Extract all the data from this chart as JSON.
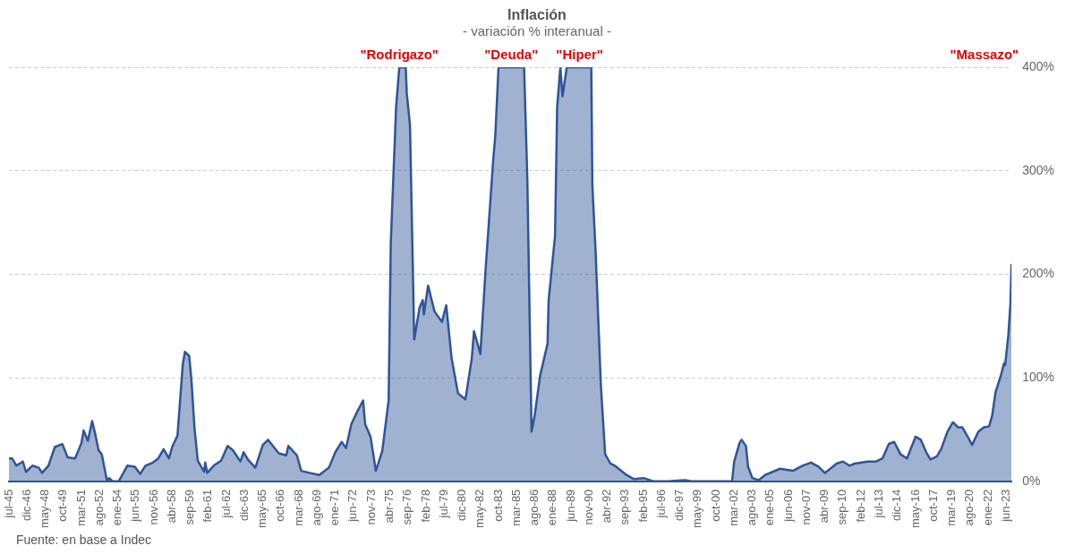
{
  "chart_data": {
    "type": "area",
    "title": "Inflación",
    "subtitle": "- variación % interanual -",
    "x": [
      "1945-07",
      "1945-10",
      "1946-02",
      "1946-08",
      "1946-11",
      "1947-05",
      "1947-11",
      "1948-02",
      "1948-08",
      "1949-02",
      "1949-09",
      "1950-02",
      "1950-09",
      "1951-03",
      "1951-05",
      "1951-09",
      "1952-01",
      "1952-04",
      "1952-07",
      "1952-10",
      "1953-03",
      "1953-05",
      "1953-08",
      "1954-02",
      "1954-10",
      "1955-05",
      "1955-10",
      "1956-03",
      "1956-10",
      "1957-03",
      "1957-08",
      "1958-01",
      "1958-04",
      "1958-09",
      "1959-02",
      "1959-04",
      "1959-08",
      "1959-10",
      "1960-01",
      "1960-04",
      "1960-10",
      "1960-11",
      "1961-01",
      "1961-07",
      "1962-02",
      "1962-08",
      "1963-01",
      "1963-08",
      "1963-11",
      "1964-03",
      "1964-10",
      "1965-05",
      "1965-10",
      "1966-08",
      "1967-03",
      "1967-05",
      "1968-01",
      "1968-05",
      "1969-01",
      "1969-10",
      "1970-07",
      "1971-01",
      "1971-07",
      "1971-11",
      "1972-04",
      "1972-09",
      "1973-03",
      "1973-05",
      "1973-10",
      "1974-03",
      "1974-09",
      "1975-03",
      "1975-05",
      "1975-10",
      "1976-01",
      "1976-07",
      "1976-08",
      "1976-11",
      "1977-03",
      "1977-08",
      "1977-11",
      "1977-12",
      "1978-04",
      "1978-10",
      "1979-05",
      "1979-09",
      "1980-02",
      "1980-08",
      "1981-03",
      "1981-09",
      "1981-11",
      "1982-05",
      "1982-10",
      "1983-05",
      "1983-07",
      "1983-10",
      "1985-10",
      "1986-01",
      "1986-05",
      "1986-08",
      "1987-01",
      "1987-08",
      "1987-09",
      "1988-03",
      "1988-05",
      "1988-08",
      "1988-10",
      "1989-02",
      "1991-01",
      "1991-02",
      "1991-05",
      "1991-10",
      "1992-02",
      "1992-07",
      "1992-11",
      "1993-05",
      "1993-10",
      "1994-05",
      "1995-02",
      "1995-11",
      "1997-01",
      "1998-05",
      "1998-11",
      "2002-01",
      "2002-03",
      "2002-08",
      "2002-10",
      "2003-02",
      "2003-04",
      "2003-08",
      "2004-02",
      "2004-08",
      "2005-03",
      "2005-10",
      "2006-10",
      "2007-07",
      "2008-03",
      "2008-10",
      "2009-04",
      "2010-03",
      "2010-09",
      "2011-03",
      "2011-08",
      "2012-08",
      "2013-04",
      "2013-10",
      "2014-04",
      "2014-09",
      "2015-03",
      "2015-09",
      "2016-05",
      "2016-10",
      "2017-03",
      "2017-07",
      "2018-01",
      "2018-05",
      "2018-11",
      "2019-04",
      "2019-09",
      "2020-01",
      "2020-07",
      "2020-10",
      "2021-04",
      "2021-09",
      "2022-02",
      "2022-05",
      "2022-08",
      "2023-01",
      "2023-04",
      "2023-05",
      "2023-08",
      "2023-10",
      "2023-11"
    ],
    "series": [
      {
        "color": "#2e5597",
        "values": [
          22,
          22,
          15,
          19,
          9,
          15,
          13,
          8,
          15,
          33,
          36,
          23,
          22,
          37,
          49,
          39,
          58,
          45,
          30,
          26,
          0,
          3,
          0,
          0,
          15,
          14,
          7,
          15,
          18,
          22,
          31,
          22,
          33,
          44,
          113,
          125,
          121,
          99,
          51,
          20,
          9,
          18,
          8,
          15,
          20,
          34,
          30,
          19,
          28,
          21,
          13,
          35,
          40,
          27,
          25,
          34,
          25,
          10,
          8,
          6,
          13,
          28,
          38,
          32,
          55,
          66,
          78,
          55,
          43,
          10,
          29,
          78,
          230,
          362,
          400,
          400,
          375,
          344,
          137,
          168,
          175,
          161,
          189,
          164,
          154,
          170,
          119,
          85,
          79,
          119,
          145,
          123,
          206,
          310,
          334,
          400,
          400,
          293,
          48,
          64,
          102,
          133,
          175,
          237,
          362,
          400,
          372,
          400,
          400,
          286,
          223,
          92,
          26,
          17,
          15,
          10,
          6,
          2,
          3,
          0,
          0,
          1,
          0,
          0,
          19,
          37,
          40,
          34,
          14,
          3,
          1,
          6,
          9,
          12,
          10,
          15,
          18,
          14,
          8,
          17,
          19,
          15,
          17,
          19,
          19,
          22,
          36,
          38,
          26,
          22,
          43,
          40,
          28,
          21,
          24,
          31,
          48,
          57,
          52,
          52,
          41,
          35,
          48,
          52,
          53,
          64,
          86,
          102,
          114,
          112,
          141,
          172,
          210
        ]
      }
    ],
    "xlim": [
      "1945-07",
      "2023-11"
    ],
    "xticks": [
      {
        "value": "1945-07",
        "label": "jul-45"
      },
      {
        "value": "1946-12",
        "label": "dic-46"
      },
      {
        "value": "1948-05",
        "label": "may-48"
      },
      {
        "value": "1949-10",
        "label": "oct-49"
      },
      {
        "value": "1951-03",
        "label": "mar-51"
      },
      {
        "value": "1952-08",
        "label": "ago-52"
      },
      {
        "value": "1954-01",
        "label": "ene-54"
      },
      {
        "value": "1955-06",
        "label": "jun-55"
      },
      {
        "value": "1956-11",
        "label": "nov-56"
      },
      {
        "value": "1958-04",
        "label": "abr-58"
      },
      {
        "value": "1959-09",
        "label": "sep-59"
      },
      {
        "value": "1961-02",
        "label": "feb-61"
      },
      {
        "value": "1962-07",
        "label": "jul-62"
      },
      {
        "value": "1963-12",
        "label": "dic-63"
      },
      {
        "value": "1965-05",
        "label": "may-65"
      },
      {
        "value": "1966-10",
        "label": "oct-66"
      },
      {
        "value": "1968-03",
        "label": "mar-68"
      },
      {
        "value": "1969-08",
        "label": "ago-69"
      },
      {
        "value": "1971-01",
        "label": "ene-71"
      },
      {
        "value": "1972-06",
        "label": "jun-72"
      },
      {
        "value": "1973-11",
        "label": "nov-73"
      },
      {
        "value": "1975-04",
        "label": "abr-75"
      },
      {
        "value": "1976-09",
        "label": "sep-76"
      },
      {
        "value": "1978-02",
        "label": "feb-78"
      },
      {
        "value": "1979-07",
        "label": "jul-79"
      },
      {
        "value": "1980-12",
        "label": "dic-80"
      },
      {
        "value": "1982-05",
        "label": "may-82"
      },
      {
        "value": "1983-10",
        "label": "oct-83"
      },
      {
        "value": "1985-03",
        "label": "mar-85"
      },
      {
        "value": "1986-08",
        "label": "ago-86"
      },
      {
        "value": "1988-01",
        "label": "ene-88"
      },
      {
        "value": "1989-06",
        "label": "jun-89"
      },
      {
        "value": "1990-11",
        "label": "nov-90"
      },
      {
        "value": "1992-04",
        "label": "abr-92"
      },
      {
        "value": "1993-09",
        "label": "sep-93"
      },
      {
        "value": "1995-02",
        "label": "feb-95"
      },
      {
        "value": "1996-07",
        "label": "jul-96"
      },
      {
        "value": "1997-12",
        "label": "dic-97"
      },
      {
        "value": "1999-05",
        "label": "may-99"
      },
      {
        "value": "2000-10",
        "label": "oct-00"
      },
      {
        "value": "2002-03",
        "label": "mar-02"
      },
      {
        "value": "2003-08",
        "label": "ago-03"
      },
      {
        "value": "2005-01",
        "label": "ene-05"
      },
      {
        "value": "2006-06",
        "label": "jun-06"
      },
      {
        "value": "2007-11",
        "label": "nov-07"
      },
      {
        "value": "2009-04",
        "label": "abr-09"
      },
      {
        "value": "2010-09",
        "label": "sep-10"
      },
      {
        "value": "2012-02",
        "label": "feb-12"
      },
      {
        "value": "2013-07",
        "label": "jul-13"
      },
      {
        "value": "2014-12",
        "label": "dic-14"
      },
      {
        "value": "2016-05",
        "label": "may-16"
      },
      {
        "value": "2017-10",
        "label": "oct-17"
      },
      {
        "value": "2019-03",
        "label": "mar-19"
      },
      {
        "value": "2020-08",
        "label": "ago-20"
      },
      {
        "value": "2022-01",
        "label": "ene-22"
      },
      {
        "value": "2023-06",
        "label": "jun-23"
      }
    ],
    "ylim": [
      0,
      400
    ],
    "yticks": [
      {
        "value": 0,
        "label": "0%"
      },
      {
        "value": 100,
        "label": "100%"
      },
      {
        "value": 200,
        "label": "200%"
      },
      {
        "value": 300,
        "label": "300%"
      },
      {
        "value": 400,
        "label": "400%"
      }
    ],
    "grid": "y",
    "legend": false,
    "marker": "none",
    "line_style": "solid",
    "annotations": [
      {
        "text": "\"Rodrigazo\"",
        "x": "1976-01",
        "y": 400
      },
      {
        "text": "\"Deuda\"",
        "x": "1984-10",
        "y": 400
      },
      {
        "text": "\"Hiper\"",
        "x": "1990-02",
        "y": 400
      },
      "\"Massazo\"",
      "Fuente: en base a Indec"
    ]
  }
}
